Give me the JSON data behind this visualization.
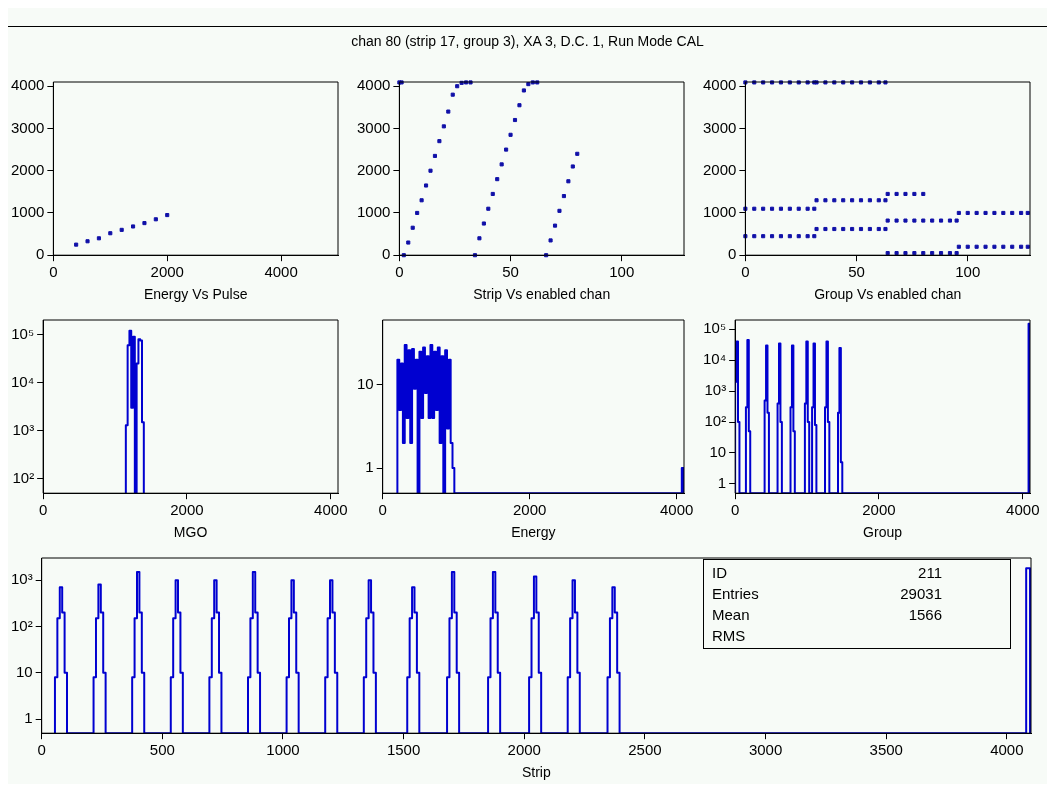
{
  "chart_data": [
    {
      "type": "other",
      "title": "chan 80 (strip 17, group 3), XA 3, D.C. 1, Run Mode CAL"
    },
    {
      "type": "scatter",
      "xlabel": "Energy Vs Pulse",
      "marker": "square",
      "xlim": [
        0,
        5000
      ],
      "xticks": [
        0,
        2000,
        4000
      ],
      "ylim": [
        0,
        4100
      ],
      "yticks": [
        0,
        1000,
        2000,
        3000,
        4000
      ],
      "series": [
        {
          "color": "#1010a8",
          "x": [
            400,
            600,
            800,
            1000,
            1200,
            1400,
            1600,
            1800,
            2000
          ],
          "values": [
            250,
            330,
            400,
            520,
            600,
            680,
            760,
            850,
            950
          ]
        }
      ]
    },
    {
      "type": "scatter",
      "xlabel": "Strip Vs enabled chan",
      "marker": "square",
      "xlim": [
        0,
        128
      ],
      "xticks": [
        0,
        50,
        100
      ],
      "ylim": [
        0,
        4100
      ],
      "yticks": [
        0,
        1000,
        2000,
        3000,
        4000
      ],
      "series": [
        {
          "color": "#1010a8",
          "x": [
            0,
            1,
            2,
            4,
            6,
            8,
            10,
            12,
            14,
            16,
            18,
            20,
            22,
            24,
            26,
            28,
            30,
            32,
            34,
            36,
            38,
            40,
            42,
            44,
            46,
            48,
            50,
            52,
            54,
            56,
            58,
            60,
            62,
            66,
            68,
            70,
            72,
            74,
            76,
            78,
            80
          ],
          "values": [
            4090,
            4090,
            0,
            300,
            650,
            1000,
            1300,
            1650,
            2000,
            2350,
            2700,
            3050,
            3400,
            3800,
            4000,
            4080,
            4090,
            4090,
            0,
            400,
            750,
            1100,
            1450,
            1800,
            2150,
            2500,
            2850,
            3200,
            3550,
            3900,
            4050,
            4090,
            4090,
            0,
            350,
            700,
            1050,
            1400,
            1750,
            2100,
            2400
          ]
        }
      ]
    },
    {
      "type": "scatter",
      "xlabel": "Group Vs enabled chan",
      "marker": "square",
      "xlim": [
        0,
        128
      ],
      "xticks": [
        0,
        50,
        100
      ],
      "ylim": [
        0,
        4100
      ],
      "yticks": [
        0,
        1000,
        2000,
        3000,
        4000
      ],
      "series": [
        {
          "color": "#1010a8",
          "x": [
            0,
            4,
            8,
            12,
            16,
            20,
            24,
            28,
            31
          ],
          "values": [
            4090,
            4090,
            4090,
            4090,
            4090,
            4090,
            4090,
            4090,
            4090
          ]
        },
        {
          "color": "#1010a8",
          "x": [
            0,
            4,
            8,
            12,
            16,
            20,
            24,
            28,
            31
          ],
          "values": [
            1100,
            1100,
            1100,
            1100,
            1100,
            1100,
            1100,
            1100,
            1100
          ]
        },
        {
          "color": "#1010a8",
          "x": [
            0,
            4,
            8,
            12,
            16,
            20,
            24,
            28,
            31
          ],
          "values": [
            450,
            450,
            450,
            450,
            450,
            450,
            450,
            450,
            450
          ]
        },
        {
          "color": "#1010a8",
          "x": [
            32,
            36,
            40,
            44,
            48,
            52,
            56,
            60,
            63
          ],
          "values": [
            4090,
            4090,
            4090,
            4090,
            4090,
            4090,
            4090,
            4090,
            4090
          ]
        },
        {
          "color": "#1010a8",
          "x": [
            32,
            36,
            40,
            44,
            48,
            52,
            56,
            60,
            63
          ],
          "values": [
            1300,
            1300,
            1300,
            1300,
            1300,
            1300,
            1300,
            1300,
            1300
          ]
        },
        {
          "color": "#1010a8",
          "x": [
            32,
            36,
            40,
            44,
            48,
            52,
            56,
            60,
            63
          ],
          "values": [
            620,
            620,
            620,
            620,
            620,
            620,
            620,
            620,
            620
          ]
        },
        {
          "color": "#1010a8",
          "x": [
            64,
            68,
            72,
            76,
            80
          ],
          "values": [
            1450,
            1450,
            1450,
            1450,
            1450
          ]
        },
        {
          "color": "#1010a8",
          "x": [
            64,
            68,
            72,
            76,
            80,
            84,
            88,
            92,
            95
          ],
          "values": [
            820,
            820,
            820,
            820,
            820,
            820,
            820,
            820,
            820
          ]
        },
        {
          "color": "#1010a8",
          "x": [
            64,
            68,
            72,
            76,
            80,
            84,
            88,
            92,
            95
          ],
          "values": [
            50,
            50,
            50,
            50,
            50,
            50,
            50,
            50,
            50
          ]
        },
        {
          "color": "#1010a8",
          "x": [
            96,
            100,
            104,
            108,
            112,
            116,
            120,
            124,
            127
          ],
          "values": [
            1000,
            1000,
            1000,
            1000,
            1000,
            1000,
            1000,
            1000,
            1000
          ]
        },
        {
          "color": "#1010a8",
          "x": [
            96,
            100,
            104,
            108,
            112,
            116,
            120,
            124,
            127
          ],
          "values": [
            200,
            200,
            200,
            200,
            200,
            200,
            200,
            200,
            200
          ]
        }
      ]
    },
    {
      "type": "histogram",
      "xlabel": "MGO",
      "log": true,
      "color": "#0000d0",
      "xlim": [
        0,
        4100
      ],
      "xticks": [
        0,
        2000,
        4000
      ],
      "ylim": [
        50,
        200000
      ],
      "yticks": [
        {
          "value": 100,
          "label": "10²"
        },
        {
          "value": 1000,
          "label": "10³"
        },
        {
          "value": 10000,
          "label": "10⁴"
        },
        {
          "value": 100000,
          "label": "10⁵"
        }
      ],
      "bins": [
        1150,
        1175,
        1200,
        1225,
        1250,
        1275,
        1300,
        1325,
        1350,
        1375,
        1400
      ],
      "values": [
        1300,
        60000,
        120000,
        3000,
        90000,
        null,
        25000,
        80000,
        75000,
        1500
      ]
    },
    {
      "type": "histogram",
      "xlabel": "Energy",
      "log": true,
      "color": "#0000d0",
      "xlim": [
        0,
        4100
      ],
      "xticks": [
        0,
        2000,
        4000
      ],
      "ylim": [
        0.5,
        60
      ],
      "yticks": [
        1,
        10
      ],
      "bins": [
        200,
        225,
        250,
        275,
        300,
        325,
        350,
        375,
        400,
        425,
        450,
        475,
        500,
        525,
        550,
        575,
        600,
        625,
        650,
        675,
        700,
        725,
        750,
        775,
        800,
        825,
        850,
        875,
        900,
        925,
        950,
        975,
        1000,
        1025,
        1050,
        4070,
        4096
      ],
      "values": [
        20,
        5,
        18,
        2,
        30,
        4,
        26,
        2,
        27,
        9,
        20,
        null,
        25,
        4,
        28,
        8,
        22,
        4,
        30,
        4,
        25,
        5,
        28,
        2,
        22,
        null,
        26,
        3,
        20,
        2,
        1,
        null,
        null,
        null,
        null,
        1
      ]
    },
    {
      "type": "histogram",
      "xlabel": "Group",
      "log": true,
      "color": "#0000d0",
      "xlim": [
        0,
        4100
      ],
      "xticks": [
        0,
        2000,
        4000
      ],
      "ylim": [
        0.5,
        200000
      ],
      "yticks": [
        1,
        10,
        {
          "value": 100,
          "label": "10²"
        },
        {
          "value": 1000,
          "label": "10³"
        },
        {
          "value": 10000,
          "label": "10⁴"
        },
        {
          "value": 100000,
          "label": "10⁵"
        }
      ],
      "bins": [
        0,
        20,
        40,
        60,
        150,
        170,
        190,
        210,
        410,
        430,
        450,
        470,
        590,
        610,
        630,
        650,
        770,
        790,
        810,
        830,
        970,
        990,
        1010,
        1030,
        1070,
        1090,
        1110,
        1130,
        1250,
        1270,
        1290,
        1310,
        1430,
        1450,
        1470,
        1490,
        4080,
        4096
      ],
      "values": [
        2000,
        40000,
        100,
        null,
        300,
        45000,
        50,
        null,
        500,
        30000,
        200,
        null,
        400,
        35000,
        100,
        null,
        300,
        30000,
        50,
        null,
        400,
        40000,
        100,
        null,
        300,
        35000,
        80,
        null,
        300,
        40000,
        100,
        null,
        200,
        25000,
        5,
        null,
        150000
      ]
    },
    {
      "type": "histogram",
      "xlabel": "Strip",
      "log": true,
      "color": "#0000d0",
      "xlim": [
        0,
        4100
      ],
      "xticks": [
        0,
        500,
        1000,
        1500,
        2000,
        2500,
        3000,
        3500,
        4000
      ],
      "ylim": [
        0.5,
        3000
      ],
      "yticks": [
        1,
        10,
        {
          "value": 100,
          "label": "10²"
        },
        {
          "value": 1000,
          "label": "10³"
        }
      ],
      "annotations": [
        "ID",
        "211",
        "Entries",
        "29031",
        "Mean",
        "1566",
        "RMS"
      ],
      "bins": [
        55,
        65,
        75,
        85,
        95,
        105,
        215,
        225,
        235,
        245,
        255,
        265,
        375,
        385,
        395,
        405,
        415,
        425,
        535,
        545,
        555,
        565,
        575,
        585,
        695,
        705,
        715,
        725,
        735,
        745,
        855,
        865,
        875,
        885,
        895,
        905,
        1015,
        1025,
        1035,
        1045,
        1055,
        1065,
        1175,
        1185,
        1195,
        1205,
        1215,
        1225,
        1335,
        1345,
        1355,
        1365,
        1375,
        1385,
        1515,
        1525,
        1535,
        1545,
        1555,
        1565,
        1680,
        1690,
        1700,
        1710,
        1720,
        1730,
        1850,
        1860,
        1870,
        1880,
        1890,
        1900,
        2020,
        2030,
        2040,
        2050,
        2060,
        2070,
        2180,
        2190,
        2200,
        2210,
        2220,
        2230,
        2345,
        2355,
        2365,
        2375,
        2385,
        2395,
        4080,
        4096
      ],
      "values": [
        8,
        150,
        700,
        200,
        10,
        null,
        8,
        150,
        800,
        200,
        10,
        null,
        8,
        150,
        1500,
        200,
        10,
        null,
        8,
        150,
        1000,
        200,
        10,
        null,
        8,
        150,
        1000,
        200,
        10,
        null,
        8,
        150,
        1500,
        200,
        10,
        null,
        8,
        150,
        1000,
        200,
        10,
        null,
        8,
        150,
        1000,
        200,
        10,
        null,
        8,
        150,
        1000,
        200,
        10,
        null,
        8,
        150,
        700,
        200,
        10,
        null,
        8,
        150,
        1500,
        200,
        10,
        null,
        8,
        150,
        1500,
        200,
        10,
        null,
        8,
        150,
        1200,
        200,
        10,
        null,
        8,
        150,
        1000,
        200,
        10,
        null,
        8,
        150,
        700,
        200,
        10,
        null,
        1800
      ]
    }
  ]
}
